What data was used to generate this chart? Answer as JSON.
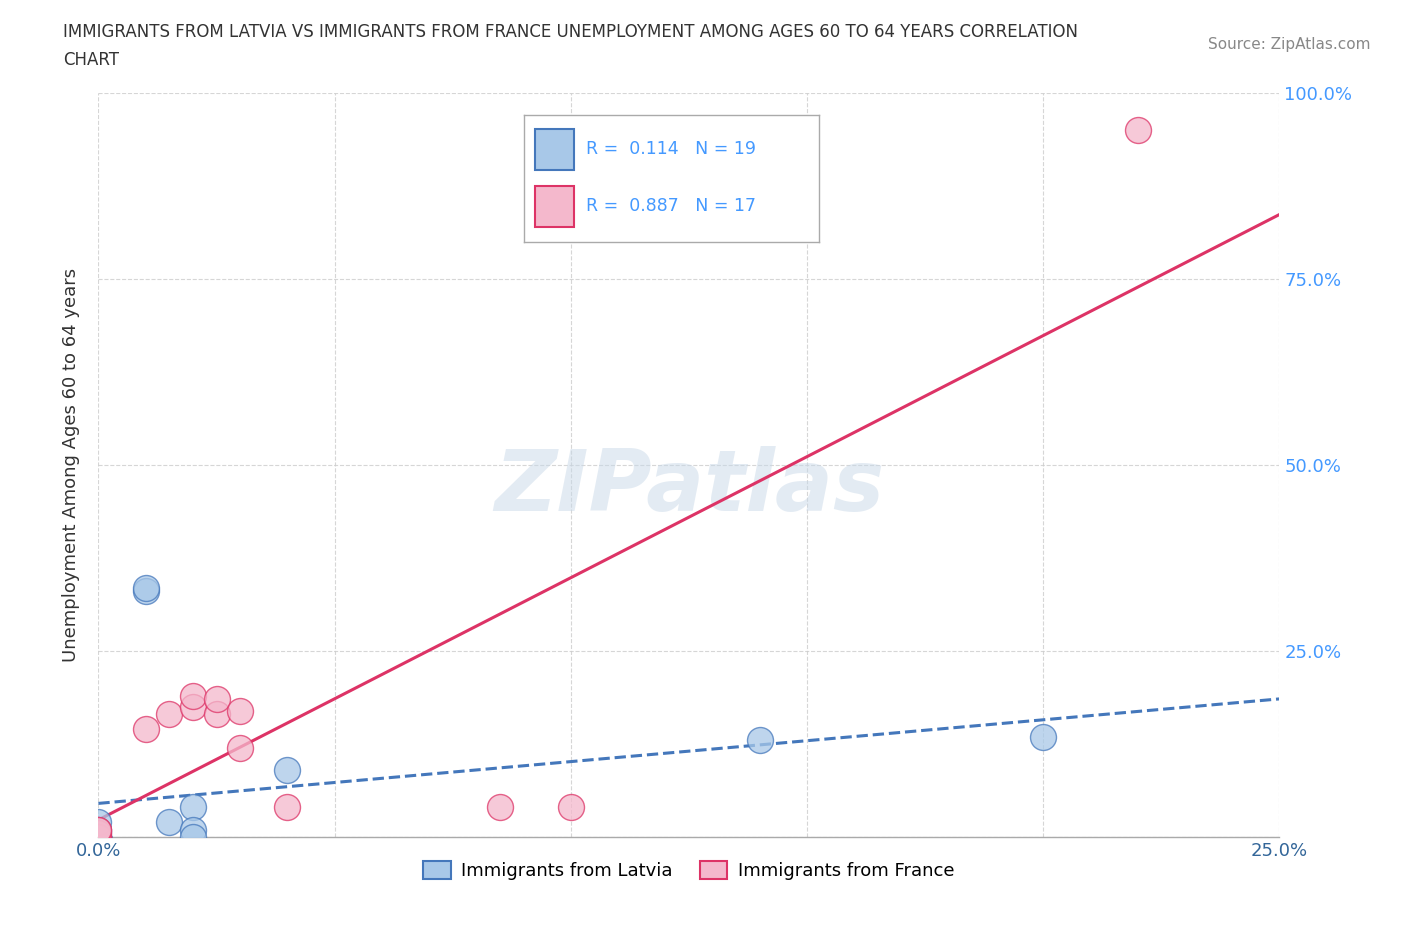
{
  "title_line1": "IMMIGRANTS FROM LATVIA VS IMMIGRANTS FROM FRANCE UNEMPLOYMENT AMONG AGES 60 TO 64 YEARS CORRELATION",
  "title_line2": "CHART",
  "source_text": "Source: ZipAtlas.com",
  "ylabel": "Unemployment Among Ages 60 to 64 years",
  "xlim": [
    0,
    0.25
  ],
  "ylim": [
    0,
    1.0
  ],
  "xticks": [
    0.0,
    0.05,
    0.1,
    0.15,
    0.2,
    0.25
  ],
  "yticks": [
    0.0,
    0.25,
    0.5,
    0.75,
    1.0
  ],
  "xticklabels": [
    "0.0%",
    "",
    "",
    "",
    "",
    "25.0%"
  ],
  "yticklabels": [
    "",
    "25.0%",
    "50.0%",
    "75.0%",
    "100.0%"
  ],
  "latvia_scatter_x": [
    0.0,
    0.0,
    0.0,
    0.0,
    0.0,
    0.0,
    0.0,
    0.0,
    0.0,
    0.0,
    0.01,
    0.01,
    0.015,
    0.02,
    0.02,
    0.02,
    0.04,
    0.14,
    0.2
  ],
  "latvia_scatter_y": [
    0.0,
    0.0,
    0.0,
    0.0,
    0.0,
    0.0,
    0.0,
    0.005,
    0.01,
    0.02,
    0.33,
    0.335,
    0.02,
    0.04,
    0.01,
    0.0,
    0.09,
    0.13,
    0.135
  ],
  "france_scatter_x": [
    0.0,
    0.0,
    0.0,
    0.0,
    0.0,
    0.01,
    0.015,
    0.02,
    0.02,
    0.025,
    0.025,
    0.03,
    0.03,
    0.04,
    0.085,
    0.22,
    0.1
  ],
  "france_scatter_y": [
    0.0,
    0.0,
    0.005,
    0.01,
    0.01,
    0.145,
    0.165,
    0.175,
    0.19,
    0.165,
    0.185,
    0.12,
    0.17,
    0.04,
    0.04,
    0.95,
    0.04
  ],
  "latvia_R": 0.114,
  "latvia_N": 19,
  "france_R": 0.887,
  "france_N": 17,
  "latvia_color": "#a8c8e8",
  "france_color": "#f4b8cc",
  "latvia_line_color": "#4477bb",
  "france_line_color": "#dd3366",
  "legend_R_color": "#4499ff",
  "legend_text_color": "#333333",
  "watermark": "ZIPatlas",
  "watermark_color": "#c8d8e8",
  "background_color": "#ffffff",
  "grid_color": "#cccccc",
  "ytick_color": "#4499ff",
  "xtick_color": "#336699",
  "ylabel_color": "#333333",
  "spine_color": "#aaaaaa"
}
